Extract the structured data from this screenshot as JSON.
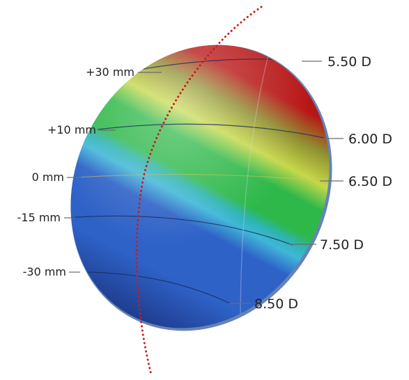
{
  "colors": {
    "top": "#b81616",
    "upper": "#c6d84a",
    "middle": "#2eb84a",
    "cyan": "#40b7d8",
    "lower": "#2e62c7",
    "bottom": "#1f3d8f",
    "axis": "#cc1b1b",
    "rim": "#6483b8"
  },
  "diagram": {
    "left_labels": [
      {
        "text": "+30 mm"
      },
      {
        "text": "+10 mm"
      },
      {
        "text": "0 mm"
      },
      {
        "text": "-15 mm"
      },
      {
        "text": "-30 mm"
      }
    ],
    "right_labels": [
      {
        "text": "5.50 D"
      },
      {
        "text": "6.00 D"
      },
      {
        "text": "6.50 D"
      },
      {
        "text": "7.50 D"
      },
      {
        "text": "8.50 D"
      }
    ]
  }
}
